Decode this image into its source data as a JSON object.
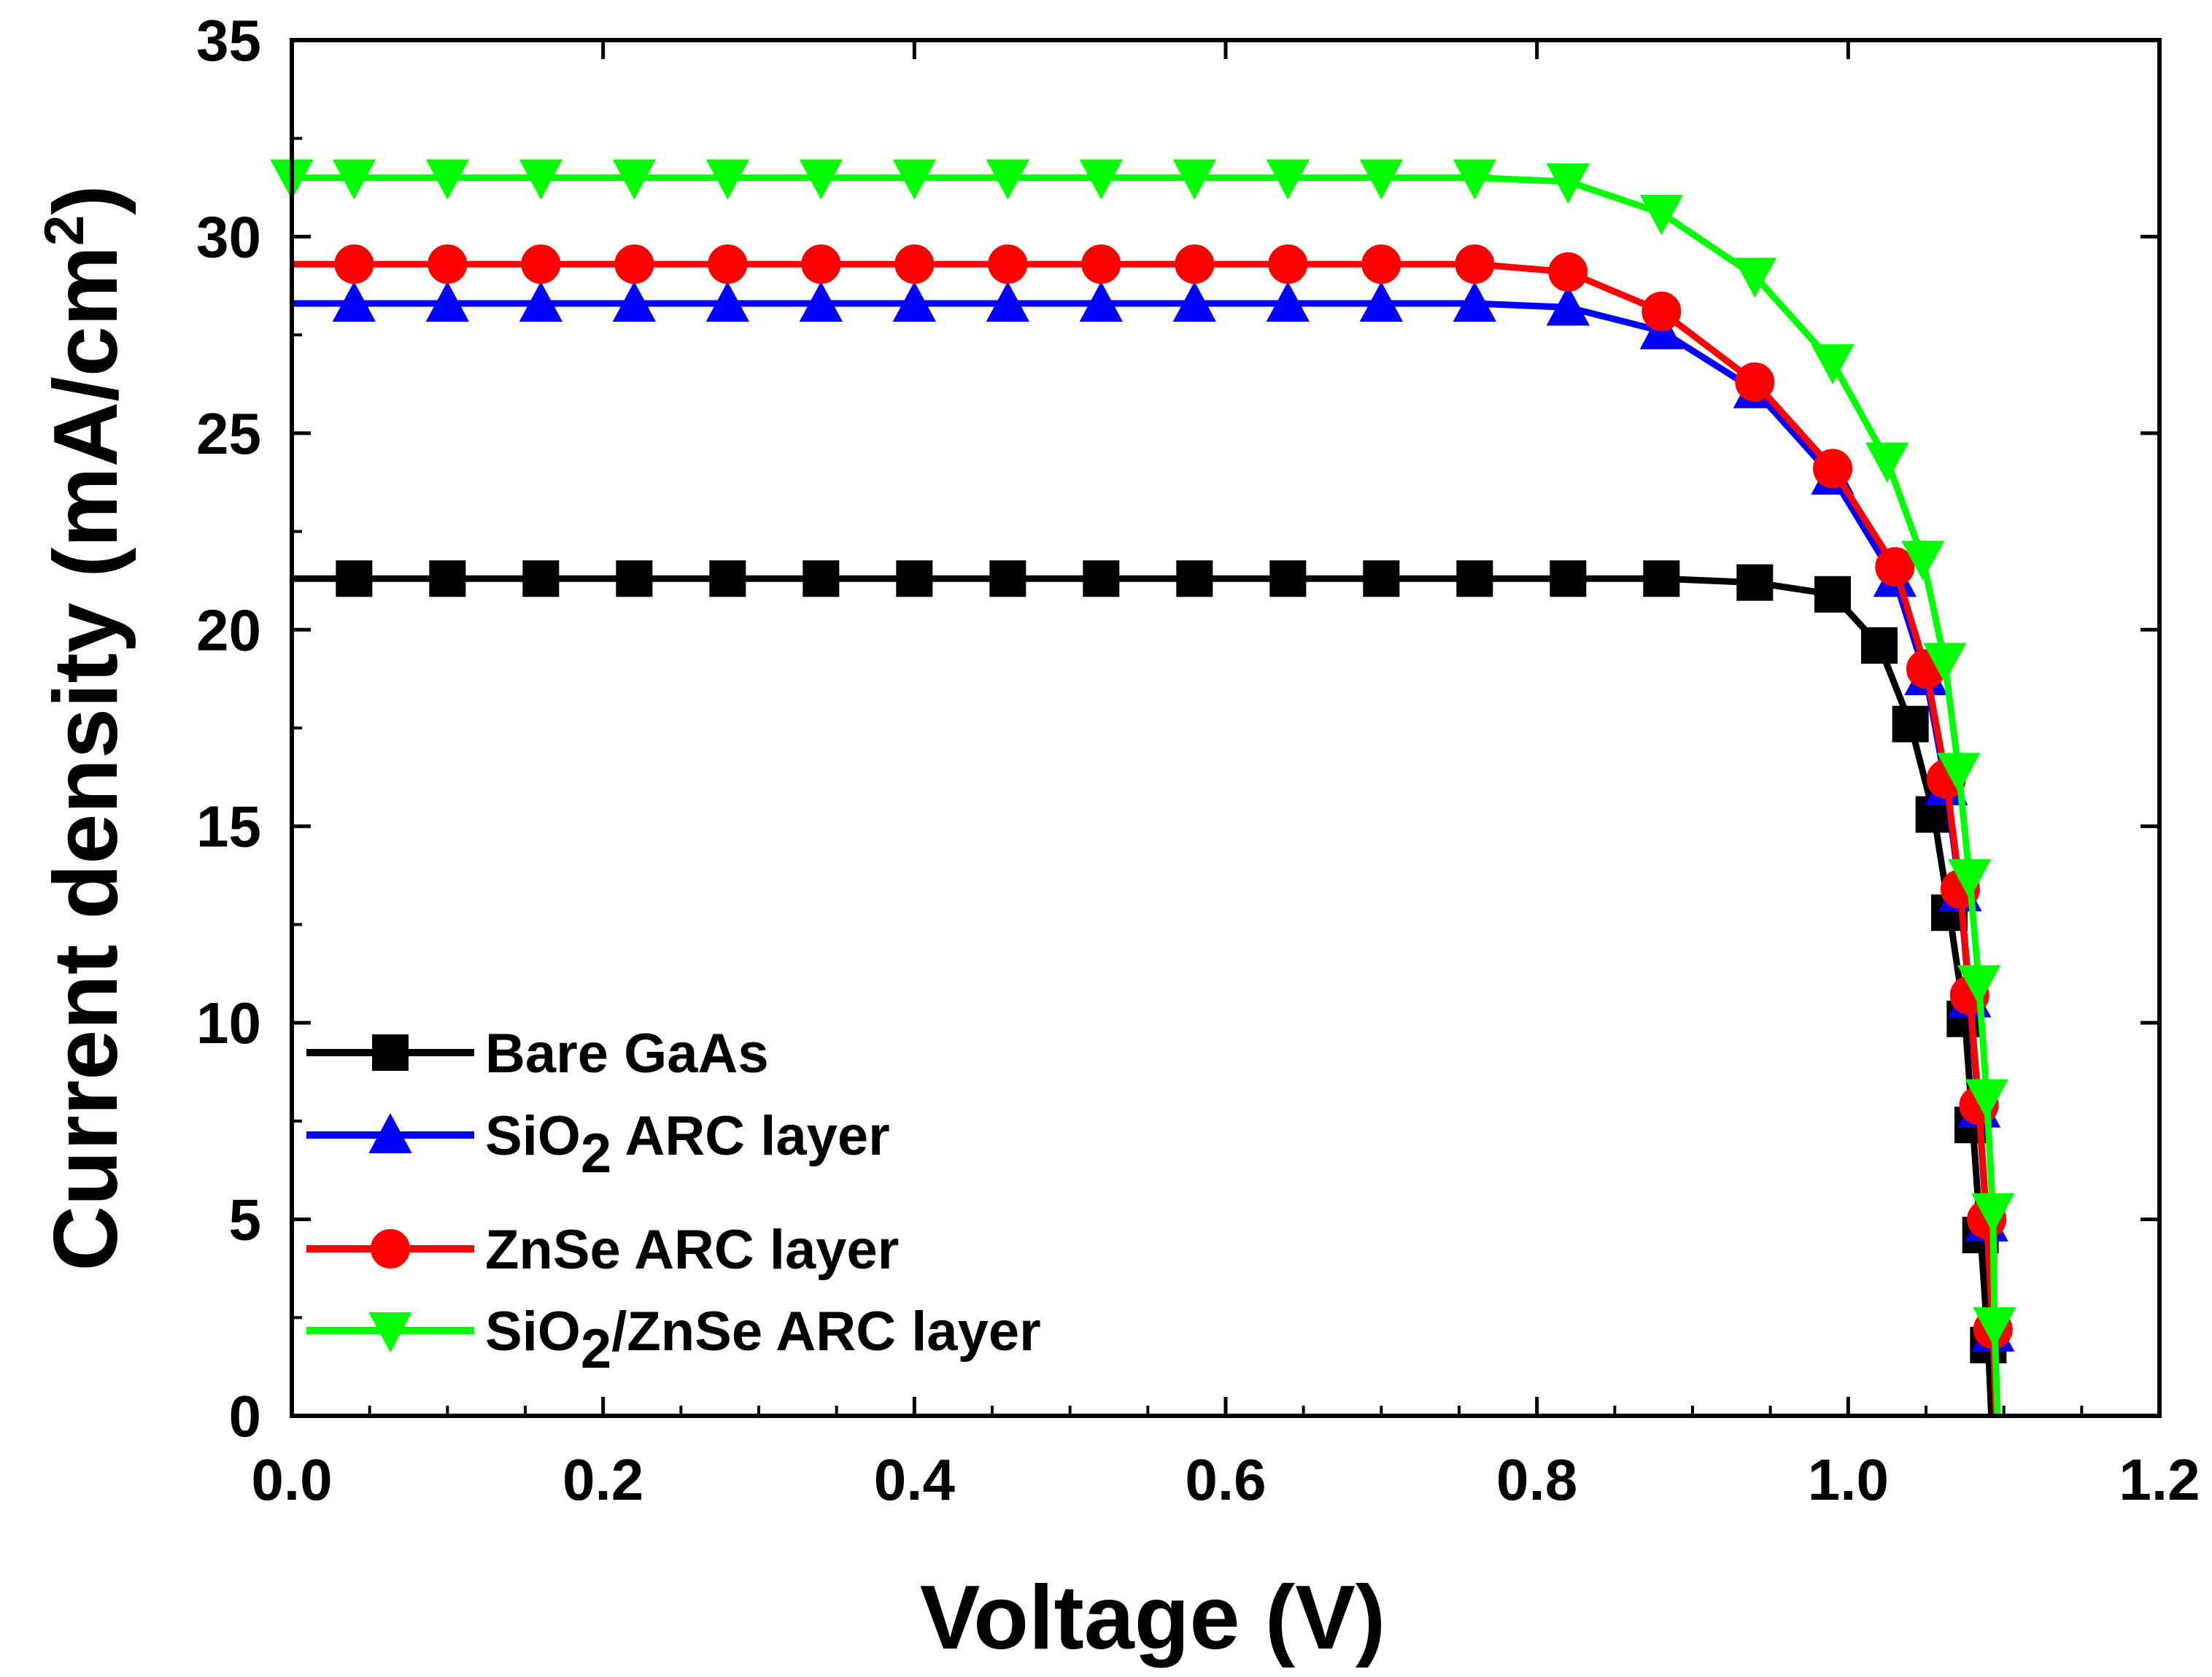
{
  "chart_data": {
    "type": "line",
    "title": "",
    "xlabel": "Voltage (V)",
    "ylabel": "Current density (mA/cm2)",
    "ylabel_parts": {
      "main": "Current density (mA/cm",
      "sup": "2",
      "close": ")"
    },
    "xlim": [
      0.0,
      1.2
    ],
    "ylim": [
      0,
      35
    ],
    "x_ticks": [
      0.0,
      0.2,
      0.4,
      0.6,
      0.8,
      1.0,
      1.2
    ],
    "x_tick_labels": [
      "0.0",
      "0.2",
      "0.4",
      "0.6",
      "0.8",
      "1.0",
      "1.2"
    ],
    "y_ticks": [
      0,
      5,
      10,
      15,
      20,
      25,
      30,
      35
    ],
    "y_tick_labels": [
      "0",
      "5",
      "10",
      "15",
      "20",
      "25",
      "30",
      "35"
    ],
    "grid": false,
    "legend_position": "bottom-left",
    "series": [
      {
        "name": "Bare GaAs",
        "legend_parts": [
          {
            "t": "Bare GaAs",
            "sub": false
          }
        ],
        "color": "#000000",
        "marker": "square",
        "jsc": 21.3,
        "x": [
          0.04,
          0.1,
          0.16,
          0.22,
          0.28,
          0.34,
          0.4,
          0.46,
          0.52,
          0.58,
          0.64,
          0.7,
          0.76,
          0.82,
          0.88,
          0.94,
          0.99,
          1.02,
          1.04,
          1.055,
          1.065,
          1.075,
          1.08,
          1.085,
          1.09
        ],
        "values": [
          21.3,
          21.3,
          21.3,
          21.3,
          21.3,
          21.3,
          21.3,
          21.3,
          21.3,
          21.3,
          21.3,
          21.3,
          21.3,
          21.3,
          21.3,
          21.2,
          20.9,
          19.6,
          17.6,
          15.3,
          12.8,
          10.1,
          7.4,
          4.6,
          1.8
        ]
      },
      {
        "name": "SiO2 ARC layer",
        "legend_parts": [
          {
            "t": " SiO",
            "sub": false
          },
          {
            "t": "2",
            "sub": true
          },
          {
            "t": " ARC layer",
            "sub": false
          }
        ],
        "color": "#0000ff",
        "marker": "triangle-up",
        "jsc": 28.3,
        "x": [
          0.04,
          0.1,
          0.16,
          0.22,
          0.28,
          0.34,
          0.4,
          0.46,
          0.52,
          0.58,
          0.64,
          0.7,
          0.76,
          0.82,
          0.88,
          0.94,
          0.99,
          1.03,
          1.05,
          1.063,
          1.072,
          1.078,
          1.084,
          1.089,
          1.093
        ],
        "values": [
          28.3,
          28.3,
          28.3,
          28.3,
          28.3,
          28.3,
          28.3,
          28.3,
          28.3,
          28.3,
          28.3,
          28.3,
          28.3,
          28.2,
          27.6,
          26.1,
          23.9,
          21.3,
          18.8,
          16.0,
          13.3,
          10.6,
          7.8,
          4.9,
          2.1
        ]
      },
      {
        "name": "ZnSe ARC layer",
        "legend_parts": [
          {
            "t": "ZnSe ARC layer",
            "sub": false
          }
        ],
        "color": "#ff0000",
        "marker": "circle",
        "jsc": 29.3,
        "x": [
          0.04,
          0.1,
          0.16,
          0.22,
          0.28,
          0.34,
          0.4,
          0.46,
          0.52,
          0.58,
          0.64,
          0.7,
          0.76,
          0.82,
          0.88,
          0.94,
          0.99,
          1.03,
          1.05,
          1.063,
          1.072,
          1.078,
          1.084,
          1.089,
          1.093
        ],
        "values": [
          29.3,
          29.3,
          29.3,
          29.3,
          29.3,
          29.3,
          29.3,
          29.3,
          29.3,
          29.3,
          29.3,
          29.3,
          29.3,
          29.1,
          28.1,
          26.3,
          24.1,
          21.6,
          19.0,
          16.2,
          13.4,
          10.7,
          7.9,
          5.0,
          2.2
        ]
      },
      {
        "name": "SiO2/ZnSe ARC layer",
        "legend_parts": [
          {
            "t": "SiO",
            "sub": false
          },
          {
            "t": "2",
            "sub": true
          },
          {
            "t": "/ZnSe ARC layer",
            "sub": false
          }
        ],
        "color": "#00ff00",
        "marker": "triangle-down",
        "jsc": 31.5,
        "x": [
          0.0,
          0.04,
          0.1,
          0.16,
          0.22,
          0.28,
          0.34,
          0.4,
          0.46,
          0.52,
          0.58,
          0.64,
          0.7,
          0.76,
          0.82,
          0.88,
          0.94,
          0.99,
          1.025,
          1.048,
          1.062,
          1.071,
          1.078,
          1.084,
          1.089,
          1.093,
          1.094
        ],
        "values": [
          31.5,
          31.5,
          31.5,
          31.5,
          31.5,
          31.5,
          31.5,
          31.5,
          31.5,
          31.5,
          31.5,
          31.5,
          31.5,
          31.5,
          31.4,
          30.6,
          29.0,
          26.8,
          24.3,
          21.8,
          19.2,
          16.4,
          13.7,
          11.0,
          8.1,
          5.2,
          2.3
        ]
      }
    ]
  }
}
